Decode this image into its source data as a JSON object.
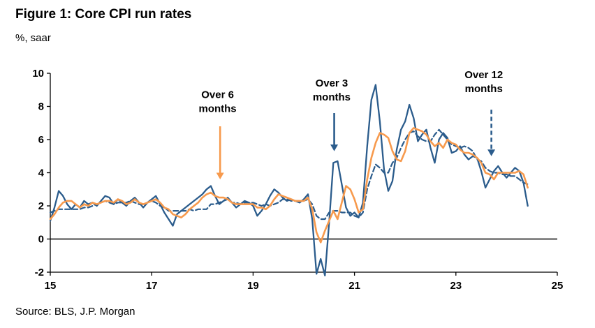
{
  "figure": {
    "title": "Figure 1: Core CPI run rates",
    "y_unit_label": "%, saar",
    "source": "Source: BLS, J.P. Morgan"
  },
  "colors": {
    "blue": "#2b5c8c",
    "orange": "#f79a4d",
    "axis": "#000000"
  },
  "chart_data": {
    "type": "line",
    "title": "Figure 1: Core CPI run rates",
    "xlabel": "",
    "ylabel": "%, saar",
    "x_start": 2015,
    "x_step_months": 1,
    "xlim": [
      2015,
      2025
    ],
    "ylim": [
      -2,
      10
    ],
    "x_ticks": [
      2015,
      2017,
      2019,
      2021,
      2023,
      2025
    ],
    "x_tick_labels": [
      "15",
      "17",
      "19",
      "21",
      "23",
      "25"
    ],
    "y_ticks": [
      -2,
      0,
      2,
      4,
      6,
      8,
      10
    ],
    "grid": false,
    "zero_line": true,
    "legend_position": "annotations-with-arrows",
    "series": [
      {
        "name": "Over 12 months",
        "style": "dashed",
        "color": "#2b5c8c",
        "width": 2.2,
        "values": [
          1.6,
          1.7,
          1.8,
          1.8,
          1.8,
          1.8,
          1.8,
          1.8,
          1.9,
          1.9,
          2.0,
          2.1,
          2.2,
          2.3,
          2.2,
          2.1,
          2.2,
          2.2,
          2.2,
          2.3,
          2.2,
          2.1,
          2.1,
          2.2,
          2.3,
          2.2,
          2.0,
          1.9,
          1.7,
          1.7,
          1.7,
          1.7,
          1.7,
          1.8,
          1.7,
          1.8,
          1.8,
          1.8,
          2.1,
          2.1,
          2.2,
          2.3,
          2.4,
          2.2,
          2.2,
          2.1,
          2.2,
          2.2,
          2.2,
          2.1,
          2.0,
          2.1,
          2.0,
          2.1,
          2.2,
          2.4,
          2.4,
          2.3,
          2.3,
          2.3,
          2.3,
          2.4,
          2.1,
          1.4,
          1.2,
          1.2,
          1.6,
          1.7,
          1.7,
          1.6,
          1.6,
          1.6,
          1.4,
          1.3,
          1.6,
          3.0,
          3.8,
          4.5,
          4.3,
          4.0,
          4.0,
          4.6,
          4.9,
          5.5,
          6.0,
          6.4,
          6.5,
          6.2,
          6.0,
          5.9,
          5.9,
          6.3,
          6.6,
          6.3,
          6.0,
          5.7,
          5.6,
          5.5,
          5.6,
          5.5,
          5.3,
          4.8,
          4.7,
          4.3,
          4.1,
          4.0,
          4.0,
          3.9,
          3.9,
          3.8,
          3.8,
          3.6,
          3.4,
          3.3
        ]
      },
      {
        "name": "Over 3 months",
        "style": "solid",
        "color": "#2b5c8c",
        "width": 2.3,
        "values": [
          1.1,
          1.9,
          2.9,
          2.6,
          2.1,
          1.8,
          2.1,
          1.9,
          2.3,
          2.1,
          2.2,
          2.0,
          2.3,
          2.6,
          2.5,
          2.1,
          2.4,
          2.2,
          2.0,
          2.3,
          2.5,
          2.2,
          1.9,
          2.2,
          2.4,
          2.6,
          2.1,
          1.6,
          1.2,
          0.8,
          1.5,
          1.7,
          1.9,
          2.1,
          2.3,
          2.5,
          2.7,
          3.0,
          3.2,
          2.6,
          2.1,
          2.3,
          2.5,
          2.2,
          1.9,
          2.1,
          2.3,
          2.2,
          2.0,
          1.4,
          1.7,
          2.1,
          2.6,
          3.0,
          2.8,
          2.5,
          2.3,
          2.4,
          2.3,
          2.2,
          2.4,
          2.7,
          1.2,
          -2.1,
          -1.2,
          -2.2,
          1.0,
          4.6,
          4.7,
          3.3,
          1.9,
          1.4,
          1.6,
          1.3,
          2.2,
          5.6,
          8.4,
          9.3,
          7.1,
          4.2,
          2.9,
          3.5,
          5.4,
          6.6,
          7.1,
          8.1,
          7.3,
          5.9,
          6.3,
          6.6,
          5.5,
          4.6,
          6.0,
          6.4,
          6.1,
          5.2,
          5.3,
          5.6,
          5.1,
          4.8,
          5.0,
          4.9,
          4.1,
          3.1,
          3.6,
          4.1,
          4.4,
          4.0,
          3.7,
          4.0,
          4.3,
          4.1,
          3.4,
          2.0
        ]
      },
      {
        "name": "Over 6 months",
        "style": "solid",
        "color": "#f79a4d",
        "width": 2.6,
        "values": [
          1.2,
          1.5,
          1.9,
          2.2,
          2.3,
          2.3,
          2.1,
          1.9,
          2.1,
          2.0,
          2.2,
          2.1,
          2.2,
          2.3,
          2.3,
          2.2,
          2.4,
          2.3,
          2.1,
          2.2,
          2.4,
          2.2,
          2.1,
          2.2,
          2.3,
          2.4,
          2.2,
          1.9,
          1.8,
          1.5,
          1.4,
          1.3,
          1.5,
          1.8,
          2.0,
          2.2,
          2.5,
          2.7,
          2.8,
          2.6,
          2.5,
          2.5,
          2.4,
          2.2,
          2.1,
          2.1,
          2.1,
          2.1,
          2.1,
          1.9,
          1.9,
          1.8,
          2.0,
          2.4,
          2.7,
          2.6,
          2.5,
          2.4,
          2.3,
          2.3,
          2.3,
          2.5,
          1.8,
          0.4,
          -0.2,
          0.5,
          1.1,
          1.7,
          1.2,
          2.2,
          3.2,
          3.0,
          2.4,
          1.6,
          1.8,
          3.6,
          4.9,
          5.8,
          6.4,
          6.3,
          6.1,
          5.3,
          4.8,
          4.7,
          5.3,
          6.4,
          6.7,
          6.6,
          6.5,
          6.3,
          5.9,
          5.6,
          5.8,
          5.5,
          6.0,
          5.8,
          5.7,
          5.4,
          5.2,
          5.2,
          5.1,
          4.9,
          4.6,
          4.0,
          3.9,
          3.6,
          4.0,
          4.0,
          4.0,
          4.0,
          4.0,
          4.1,
          3.9,
          3.1
        ]
      }
    ],
    "annotations": [
      {
        "lines": [
          "Over 6",
          "months"
        ],
        "color": "#f79a4d",
        "dashed": false,
        "text_x": 2018.3,
        "text_y": 8.5,
        "arrow_x": 2018.35,
        "arrow_y_from": 6.8,
        "arrow_y_to": 3.6
      },
      {
        "lines": [
          "Over 3",
          "months"
        ],
        "color": "#2b5c8c",
        "dashed": false,
        "text_x": 2020.55,
        "text_y": 9.2,
        "arrow_x": 2020.6,
        "arrow_y_from": 7.6,
        "arrow_y_to": 5.3
      },
      {
        "lines": [
          "Over 12",
          "months"
        ],
        "color": "#2b5c8c",
        "dashed": true,
        "text_x": 2023.55,
        "text_y": 9.7,
        "arrow_x": 2023.7,
        "arrow_y_from": 7.8,
        "arrow_y_to": 5.0
      }
    ]
  }
}
